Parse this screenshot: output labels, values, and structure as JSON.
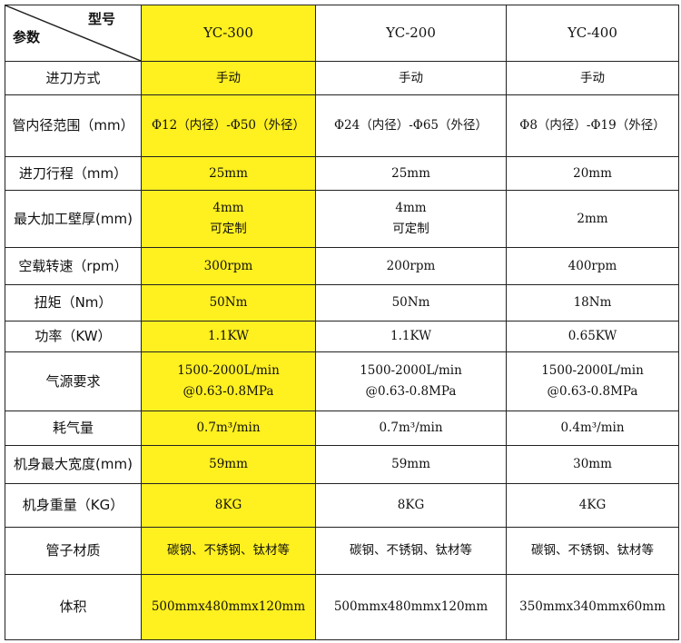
{
  "header": {
    "corner_top": "型号",
    "corner_bottom": "参数",
    "models": [
      "YC-300",
      "YC-200",
      "YC-400"
    ]
  },
  "highlight_color": "#FFF01F",
  "rows": [
    {
      "label": "进刀方式",
      "values": [
        [
          "手动"
        ],
        [
          "手动"
        ],
        [
          "手动"
        ]
      ]
    },
    {
      "label": "管内径范围（mm）",
      "values": [
        [
          "Φ12（内径）-Φ50（外径）"
        ],
        [
          "Φ24（内径）-Φ65（外径）"
        ],
        [
          "Φ8（内径）-Φ19（外径）"
        ]
      ]
    },
    {
      "label": "进刀行程（mm）",
      "values": [
        [
          "25mm"
        ],
        [
          "25mm"
        ],
        [
          "20mm"
        ]
      ]
    },
    {
      "label": "最大加工壁厚(mm)",
      "values": [
        [
          "4mm",
          "可定制"
        ],
        [
          "4mm",
          "可定制"
        ],
        [
          "2mm"
        ]
      ]
    },
    {
      "label": "空载转速（rpm）",
      "values": [
        [
          "300rpm"
        ],
        [
          "200rpm"
        ],
        [
          "400rpm"
        ]
      ]
    },
    {
      "label": "扭矩（Nm）",
      "values": [
        [
          "50Nm"
        ],
        [
          "50Nm"
        ],
        [
          "18Nm"
        ]
      ]
    },
    {
      "label": "功率（KW）",
      "values": [
        [
          "1.1KW"
        ],
        [
          "1.1KW"
        ],
        [
          "0.65KW"
        ]
      ]
    },
    {
      "label": "气源要求",
      "values": [
        [
          "1500-2000L/min",
          "@0.63-0.8MPa"
        ],
        [
          "1500-2000L/min",
          "@0.63-0.8MPa"
        ],
        [
          "1500-2000L/min",
          "@0.63-0.8MPa"
        ]
      ]
    },
    {
      "label": "耗气量",
      "values": [
        [
          "0.7m³/min"
        ],
        [
          "0.7m³/min"
        ],
        [
          "0.4m³/min"
        ]
      ]
    },
    {
      "label": "机身最大宽度(mm)",
      "values": [
        [
          "59mm"
        ],
        [
          "59mm"
        ],
        [
          "30mm"
        ]
      ]
    },
    {
      "label": "机身重量（KG）",
      "values": [
        [
          "8KG"
        ],
        [
          "8KG"
        ],
        [
          "4KG"
        ]
      ]
    },
    {
      "label": "管子材质",
      "values": [
        [
          "碳钢、不锈钢、钛材等"
        ],
        [
          "碳钢、不锈钢、钛材等"
        ],
        [
          "碳钢、不锈钢、钛材等"
        ]
      ]
    },
    {
      "label": "体积",
      "values": [
        [
          "500mmx480mmx120mm"
        ],
        [
          "500mmx480mmx120mm"
        ],
        [
          "350mmx340mmx60mm"
        ]
      ]
    }
  ]
}
